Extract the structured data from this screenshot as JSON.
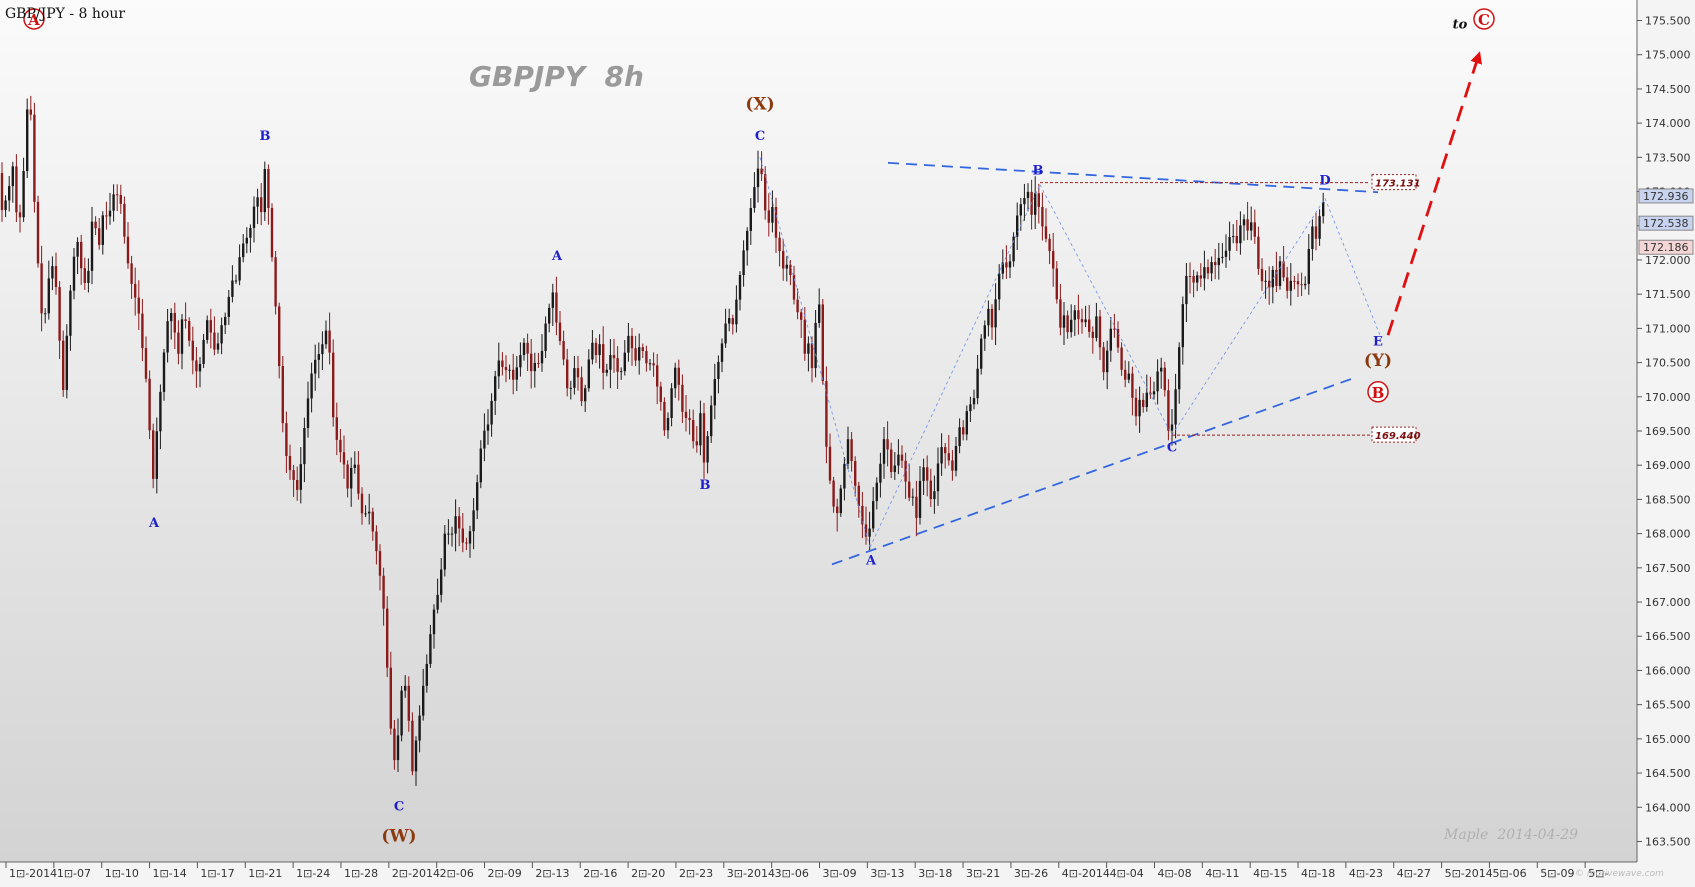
{
  "header": {
    "symbol_text": "GBP/JPY - 8 hour",
    "watermark_title": "GBPJPY  8h",
    "signature": "Maple  2014-04-29",
    "brand": "© motivewave.com"
  },
  "chart_data": {
    "type": "candlestick",
    "symbol": "GBP/JPY",
    "timeframe": "8 hour",
    "ylim": [
      163.2,
      175.8
    ],
    "y_ticks": [
      163.5,
      164.0,
      164.5,
      165.0,
      165.5,
      166.0,
      166.5,
      167.0,
      167.5,
      168.0,
      168.5,
      169.0,
      169.5,
      170.0,
      170.5,
      171.0,
      171.5,
      172.0,
      172.5,
      173.0,
      173.5,
      174.0,
      174.5,
      175.0,
      175.5
    ],
    "y_tick_labels": [
      "163.500",
      "164.000",
      "164.500",
      "165.000",
      "165.500",
      "166.000",
      "166.500",
      "167.000",
      "167.500",
      "168.000",
      "168.500",
      "169.000",
      "169.500",
      "170.000",
      "170.500",
      "171.000",
      "171.500",
      "172.000",
      "172.500",
      "173.000",
      "173.500",
      "174.000",
      "174.500",
      "175.000",
      "175.500"
    ],
    "x_tick_labels": [
      "1⊡-2014",
      "1⊡-07",
      "1⊡-10",
      "1⊡-14",
      "1⊡-17",
      "1⊡-21",
      "1⊡-24",
      "1⊡-28",
      "2⊡-2014",
      "2⊡-06",
      "2⊡-09",
      "2⊡-13",
      "2⊡-16",
      "2⊡-20",
      "2⊡-23",
      "3⊡-2014",
      "3⊡-06",
      "3⊡-09",
      "3⊡-13",
      "3⊡-18",
      "3⊡-21",
      "3⊡-26",
      "4⊡-2014",
      "4⊡-04",
      "4⊡-08",
      "4⊡-11",
      "4⊡-15",
      "4⊡-18",
      "4⊡-23",
      "4⊡-27",
      "5⊡-2014",
      "5⊡-06",
      "5⊡-09",
      "5⊡-"
    ],
    "price_path": [
      [
        0,
        173.3
      ],
      [
        4,
        172.7
      ],
      [
        10,
        173.0
      ],
      [
        15,
        173.4
      ],
      [
        20,
        172.3
      ],
      [
        25,
        173.2
      ],
      [
        31,
        174.7
      ],
      [
        36,
        172.9
      ],
      [
        40,
        171.9
      ],
      [
        45,
        170.9
      ],
      [
        50,
        171.7
      ],
      [
        56,
        172.0
      ],
      [
        61,
        170.9
      ],
      [
        65,
        170.1
      ],
      [
        70,
        171.2
      ],
      [
        75,
        172.0
      ],
      [
        80,
        172.3
      ],
      [
        85,
        171.6
      ],
      [
        90,
        171.8
      ],
      [
        95,
        172.8
      ],
      [
        100,
        172.1
      ],
      [
        105,
        172.7
      ],
      [
        110,
        172.6
      ],
      [
        116,
        173.0
      ],
      [
        122,
        172.9
      ],
      [
        128,
        172.1
      ],
      [
        134,
        171.6
      ],
      [
        140,
        171.3
      ],
      [
        145,
        170.6
      ],
      [
        150,
        170.0
      ],
      [
        154,
        168.6
      ],
      [
        158,
        169.4
      ],
      [
        163,
        170.2
      ],
      [
        168,
        171.0
      ],
      [
        172,
        171.3
      ],
      [
        176,
        171.0
      ],
      [
        180,
        170.6
      ],
      [
        185,
        171.3
      ],
      [
        190,
        170.9
      ],
      [
        195,
        170.5
      ],
      [
        200,
        170.3
      ],
      [
        205,
        170.8
      ],
      [
        210,
        171.2
      ],
      [
        214,
        170.8
      ],
      [
        218,
        170.6
      ],
      [
        222,
        171.0
      ],
      [
        228,
        171.2
      ],
      [
        233,
        171.7
      ],
      [
        238,
        171.7
      ],
      [
        243,
        172.2
      ],
      [
        248,
        172.3
      ],
      [
        253,
        172.5
      ],
      [
        258,
        173.0
      ],
      [
        263,
        172.7
      ],
      [
        267,
        173.4
      ],
      [
        270,
        172.8
      ],
      [
        274,
        172.0
      ],
      [
        278,
        171.2
      ],
      [
        282,
        170.2
      ],
      [
        286,
        169.3
      ],
      [
        290,
        169.0
      ],
      [
        295,
        168.8
      ],
      [
        300,
        168.6
      ],
      [
        305,
        169.4
      ],
      [
        310,
        170.0
      ],
      [
        315,
        170.5
      ],
      [
        320,
        170.6
      ],
      [
        325,
        170.8
      ],
      [
        330,
        171.1
      ],
      [
        334,
        169.8
      ],
      [
        338,
        169.4
      ],
      [
        342,
        169.2
      ],
      [
        346,
        169.0
      ],
      [
        350,
        168.6
      ],
      [
        355,
        169.2
      ],
      [
        360,
        168.6
      ],
      [
        365,
        168.2
      ],
      [
        370,
        168.4
      ],
      [
        375,
        168.0
      ],
      [
        380,
        167.6
      ],
      [
        385,
        167.0
      ],
      [
        390,
        165.8
      ],
      [
        394,
        164.8
      ],
      [
        398,
        164.6
      ],
      [
        402,
        165.6
      ],
      [
        406,
        165.9
      ],
      [
        410,
        165.4
      ],
      [
        414,
        164.5
      ],
      [
        418,
        165.0
      ],
      [
        422,
        165.4
      ],
      [
        426,
        165.9
      ],
      [
        430,
        166.2
      ],
      [
        434,
        166.8
      ],
      [
        438,
        167.0
      ],
      [
        442,
        167.3
      ],
      [
        446,
        168.0
      ],
      [
        450,
        168.0
      ],
      [
        454,
        168.0
      ],
      [
        458,
        168.3
      ],
      [
        462,
        168.0
      ],
      [
        466,
        167.8
      ],
      [
        470,
        167.9
      ],
      [
        474,
        168.2
      ],
      [
        478,
        168.6
      ],
      [
        482,
        169.2
      ],
      [
        486,
        169.5
      ],
      [
        490,
        169.6
      ],
      [
        494,
        170.0
      ],
      [
        498,
        170.4
      ],
      [
        502,
        170.6
      ],
      [
        506,
        170.3
      ],
      [
        510,
        170.5
      ],
      [
        514,
        170.2
      ],
      [
        518,
        170.4
      ],
      [
        522,
        170.6
      ],
      [
        526,
        170.8
      ],
      [
        530,
        170.6
      ],
      [
        534,
        170.3
      ],
      [
        538,
        170.6
      ],
      [
        542,
        170.4
      ],
      [
        546,
        171.0
      ],
      [
        550,
        171.2
      ],
      [
        554,
        171.6
      ],
      [
        558,
        171.1
      ],
      [
        562,
        170.8
      ],
      [
        566,
        170.5
      ],
      [
        570,
        170.0
      ],
      [
        574,
        170.2
      ],
      [
        578,
        170.6
      ],
      [
        582,
        169.9
      ],
      [
        586,
        170.0
      ],
      [
        590,
        170.5
      ],
      [
        594,
        170.8
      ],
      [
        598,
        170.6
      ],
      [
        602,
        170.8
      ],
      [
        606,
        170.2
      ],
      [
        610,
        170.5
      ],
      [
        614,
        170.7
      ],
      [
        618,
        170.4
      ],
      [
        622,
        170.3
      ],
      [
        626,
        170.6
      ],
      [
        630,
        170.9
      ],
      [
        634,
        170.7
      ],
      [
        638,
        170.5
      ],
      [
        642,
        170.8
      ],
      [
        646,
        170.6
      ],
      [
        650,
        170.4
      ],
      [
        654,
        170.6
      ],
      [
        658,
        170.2
      ],
      [
        662,
        170.0
      ],
      [
        666,
        169.5
      ],
      [
        670,
        169.7
      ],
      [
        674,
        170.2
      ],
      [
        678,
        170.5
      ],
      [
        682,
        170.0
      ],
      [
        686,
        169.6
      ],
      [
        690,
        169.8
      ],
      [
        694,
        169.4
      ],
      [
        698,
        169.2
      ],
      [
        702,
        169.8
      ],
      [
        706,
        169.0
      ],
      [
        710,
        169.5
      ],
      [
        714,
        170.0
      ],
      [
        718,
        170.4
      ],
      [
        722,
        170.6
      ],
      [
        726,
        171.0
      ],
      [
        730,
        171.2
      ],
      [
        734,
        171.0
      ],
      [
        738,
        171.4
      ],
      [
        742,
        171.8
      ],
      [
        746,
        172.2
      ],
      [
        750,
        172.5
      ],
      [
        754,
        172.9
      ],
      [
        758,
        173.2
      ],
      [
        762,
        173.5
      ],
      [
        766,
        172.8
      ],
      [
        770,
        172.5
      ],
      [
        774,
        172.8
      ],
      [
        778,
        172.3
      ],
      [
        782,
        172.1
      ],
      [
        786,
        171.8
      ],
      [
        790,
        172.0
      ],
      [
        794,
        171.6
      ],
      [
        798,
        171.2
      ],
      [
        802,
        171.3
      ],
      [
        806,
        170.6
      ],
      [
        810,
        170.8
      ],
      [
        814,
        170.4
      ],
      [
        818,
        171.2
      ],
      [
        822,
        171.4
      ],
      [
        826,
        169.6
      ],
      [
        830,
        169.0
      ],
      [
        834,
        168.5
      ],
      [
        838,
        168.2
      ],
      [
        842,
        168.6
      ],
      [
        846,
        169.0
      ],
      [
        850,
        169.4
      ],
      [
        854,
        169.0
      ],
      [
        858,
        168.6
      ],
      [
        862,
        168.3
      ],
      [
        866,
        168.0
      ],
      [
        870,
        167.9
      ],
      [
        874,
        168.4
      ],
      [
        878,
        168.7
      ],
      [
        882,
        169.0
      ],
      [
        886,
        169.4
      ],
      [
        890,
        169.2
      ],
      [
        894,
        168.8
      ],
      [
        898,
        169.1
      ],
      [
        902,
        169.2
      ],
      [
        906,
        168.9
      ],
      [
        910,
        168.5
      ],
      [
        914,
        168.6
      ],
      [
        918,
        168.2
      ],
      [
        922,
        168.8
      ],
      [
        926,
        169.0
      ],
      [
        930,
        168.7
      ],
      [
        934,
        168.4
      ],
      [
        938,
        168.8
      ],
      [
        942,
        169.3
      ],
      [
        946,
        169.2
      ],
      [
        950,
        169.1
      ],
      [
        954,
        168.9
      ],
      [
        958,
        169.3
      ],
      [
        962,
        169.6
      ],
      [
        966,
        169.4
      ],
      [
        970,
        170.0
      ],
      [
        974,
        169.8
      ],
      [
        978,
        170.2
      ],
      [
        982,
        170.8
      ],
      [
        986,
        171.0
      ],
      [
        990,
        171.3
      ],
      [
        994,
        171.0
      ],
      [
        998,
        171.5
      ],
      [
        1002,
        171.9
      ],
      [
        1006,
        172.0
      ],
      [
        1010,
        171.8
      ],
      [
        1014,
        172.2
      ],
      [
        1018,
        172.6
      ],
      [
        1022,
        172.8
      ],
      [
        1026,
        172.9
      ],
      [
        1030,
        173.0
      ],
      [
        1034,
        172.6
      ],
      [
        1038,
        173.1
      ],
      [
        1042,
        172.6
      ],
      [
        1046,
        172.4
      ],
      [
        1050,
        172.2
      ],
      [
        1054,
        172.0
      ],
      [
        1058,
        171.5
      ],
      [
        1062,
        171.0
      ],
      [
        1066,
        171.2
      ],
      [
        1070,
        170.9
      ],
      [
        1074,
        171.2
      ],
      [
        1078,
        171.3
      ],
      [
        1082,
        171.0
      ],
      [
        1086,
        171.2
      ],
      [
        1090,
        171.0
      ],
      [
        1094,
        170.8
      ],
      [
        1098,
        171.2
      ],
      [
        1102,
        170.7
      ],
      [
        1106,
        170.3
      ],
      [
        1110,
        170.8
      ],
      [
        1114,
        171.1
      ],
      [
        1118,
        170.9
      ],
      [
        1122,
        170.5
      ],
      [
        1126,
        170.2
      ],
      [
        1130,
        170.4
      ],
      [
        1134,
        170.0
      ],
      [
        1138,
        169.7
      ],
      [
        1142,
        170.0
      ],
      [
        1146,
        169.8
      ],
      [
        1150,
        170.2
      ],
      [
        1154,
        169.9
      ],
      [
        1158,
        170.3
      ],
      [
        1162,
        170.5
      ],
      [
        1166,
        170.2
      ],
      [
        1170,
        169.5
      ],
      [
        1174,
        169.6
      ],
      [
        1178,
        170.2
      ],
      [
        1182,
        170.9
      ],
      [
        1186,
        171.6
      ],
      [
        1190,
        171.9
      ],
      [
        1194,
        171.6
      ],
      [
        1198,
        171.8
      ],
      [
        1202,
        171.7
      ],
      [
        1206,
        171.9
      ],
      [
        1210,
        171.8
      ],
      [
        1214,
        172.0
      ],
      [
        1218,
        171.9
      ],
      [
        1222,
        172.1
      ],
      [
        1226,
        172.0
      ],
      [
        1230,
        172.3
      ],
      [
        1234,
        172.4
      ],
      [
        1238,
        172.2
      ],
      [
        1242,
        172.5
      ],
      [
        1246,
        172.6
      ],
      [
        1250,
        172.4
      ],
      [
        1254,
        172.6
      ],
      [
        1258,
        172.2
      ],
      [
        1262,
        171.6
      ],
      [
        1266,
        171.8
      ],
      [
        1270,
        171.5
      ],
      [
        1274,
        171.9
      ],
      [
        1278,
        171.6
      ],
      [
        1282,
        172.0
      ],
      [
        1286,
        171.7
      ],
      [
        1290,
        171.5
      ],
      [
        1294,
        171.8
      ],
      [
        1298,
        171.6
      ],
      [
        1302,
        171.7
      ],
      [
        1306,
        171.5
      ],
      [
        1310,
        172.1
      ],
      [
        1314,
        172.5
      ],
      [
        1318,
        172.3
      ],
      [
        1322,
        172.7
      ],
      [
        1326,
        172.9
      ]
    ],
    "trendlines": [
      {
        "name": "upper-blue",
        "from": [
          888,
          173.42
        ],
        "to": [
          1378,
          172.99
        ],
        "style": "dashed",
        "color": "#3366e0"
      },
      {
        "name": "lower-blue",
        "from": [
          832,
          167.55
        ],
        "to": [
          1355,
          170.28
        ],
        "style": "dashed",
        "color": "#3366e0"
      }
    ],
    "wave_path": [
      [
        760,
        173.5
      ],
      [
        870,
        167.8
      ],
      [
        1040,
        173.1
      ],
      [
        1172,
        169.44
      ],
      [
        1325,
        172.9
      ],
      [
        1380,
        170.9
      ]
    ],
    "projection": {
      "from": [
        1388,
        170.9
      ],
      "to": [
        1480,
        175.05
      ],
      "color": "#e01010"
    },
    "levels": [
      {
        "label": "173.131",
        "value": 173.131,
        "x_start": 1040,
        "x_end": 1370
      },
      {
        "label": "169.440",
        "value": 169.44,
        "x_start": 1172,
        "x_end": 1370
      }
    ],
    "price_badges": [
      {
        "label": "172.936",
        "value": 172.936,
        "color": "#c8d3f0"
      },
      {
        "label": "172.538",
        "value": 172.538,
        "color": "#c8d3f0"
      },
      {
        "label": "172.186",
        "value": 172.186,
        "color": "#f4d6d6"
      }
    ],
    "wave_labels": [
      {
        "text": "A",
        "price": 175.45,
        "x": 34,
        "style": "red"
      },
      {
        "text": "B",
        "price": 173.75,
        "x": 265,
        "style": "blue"
      },
      {
        "text": "A",
        "price": 168.1,
        "x": 154,
        "style": "blue"
      },
      {
        "text": "C",
        "price": 163.95,
        "x": 399,
        "style": "blue"
      },
      {
        "text": "(W)",
        "price": 163.5,
        "x": 399,
        "style": "brown"
      },
      {
        "text": "A",
        "price": 172.0,
        "x": 557,
        "style": "blue"
      },
      {
        "text": "B",
        "price": 168.65,
        "x": 705,
        "style": "blue"
      },
      {
        "text": "(X)",
        "price": 174.2,
        "x": 760,
        "style": "brown"
      },
      {
        "text": "C",
        "price": 173.75,
        "x": 760,
        "style": "blue"
      },
      {
        "text": "A",
        "price": 167.55,
        "x": 871,
        "style": "blue"
      },
      {
        "text": "B",
        "price": 173.25,
        "x": 1038,
        "style": "blue"
      },
      {
        "text": "C",
        "price": 169.2,
        "x": 1172,
        "style": "blue"
      },
      {
        "text": "D",
        "price": 173.1,
        "x": 1325,
        "style": "blue"
      },
      {
        "text": "E",
        "price": 170.75,
        "x": 1378,
        "style": "blue"
      },
      {
        "text": "(Y)",
        "price": 170.45,
        "x": 1378,
        "style": "brown"
      },
      {
        "text": "B",
        "price": 170.0,
        "x": 1378,
        "style": "red"
      },
      {
        "text": "to",
        "price": 175.4,
        "x": 1460,
        "style": "to"
      },
      {
        "text": "C",
        "price": 175.45,
        "x": 1484,
        "style": "red"
      }
    ]
  }
}
